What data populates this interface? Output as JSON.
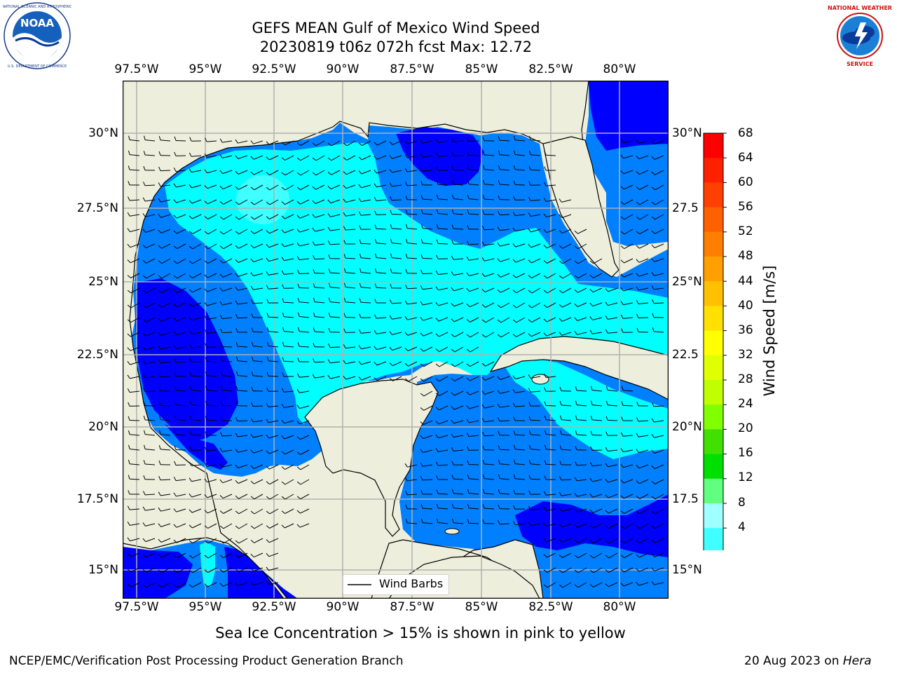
{
  "header": {
    "title_line1": "GEFS MEAN Gulf of Mexico Wind Speed",
    "title_line2": "20230819 t06z 072h fcst   Max: 12.72"
  },
  "logos": {
    "noaa_text": "NOAA",
    "noaa_ring_text": "NATIONAL OCEANIC AND ATMOSPHERIC ADMINISTRATION · U.S. DEPARTMENT OF COMMERCE",
    "nws_ring_text": "NATIONAL WEATHER SERVICE"
  },
  "map": {
    "lon_labels": [
      "97.5°W",
      "95°W",
      "92.5°W",
      "90°W",
      "87.5°W",
      "85°W",
      "82.5°W",
      "80°W"
    ],
    "lat_labels": [
      "30°N",
      "27.5°N",
      "25°N",
      "22.5°N",
      "20°N",
      "17.5°N",
      "15°N"
    ],
    "lat_labels_right": [
      "30°N",
      "27.5",
      "25°N",
      "22.5",
      "20°N",
      "17.5",
      "15°N"
    ],
    "legend_label": "Wind Barbs",
    "colors": {
      "land": "#eeeedc",
      "c4": "#0000ff",
      "c4_8": "#0080ff",
      "c8_12": "#00ffff",
      "c12_16": "#40ffff",
      "grid": "#b0b0b0"
    }
  },
  "colorbar": {
    "label": "Wind Speed [m/s]",
    "ticks": [
      "68",
      "64",
      "60",
      "56",
      "52",
      "48",
      "44",
      "40",
      "36",
      "32",
      "28",
      "24",
      "20",
      "16",
      "12",
      "8",
      "4"
    ],
    "colors": [
      "#ff0000",
      "#ff2000",
      "#ff4000",
      "#ff6000",
      "#ff8000",
      "#ffa000",
      "#ffc000",
      "#ffe000",
      "#ffff00",
      "#e0ff00",
      "#c0ff00",
      "#80ff00",
      "#40e000",
      "#00e000",
      "#60ff80",
      "#a0ffff",
      "#40ffff",
      "#00ffff",
      "#0080ff",
      "#0000ff"
    ]
  },
  "bottom_note": "Sea Ice Concentration > 15% is shown in pink to yellow",
  "footer": {
    "left": "NCEP/EMC/Verification Post Processing Product Generation Branch",
    "date": "20 Aug 2023 on ",
    "machine": "Hera"
  }
}
